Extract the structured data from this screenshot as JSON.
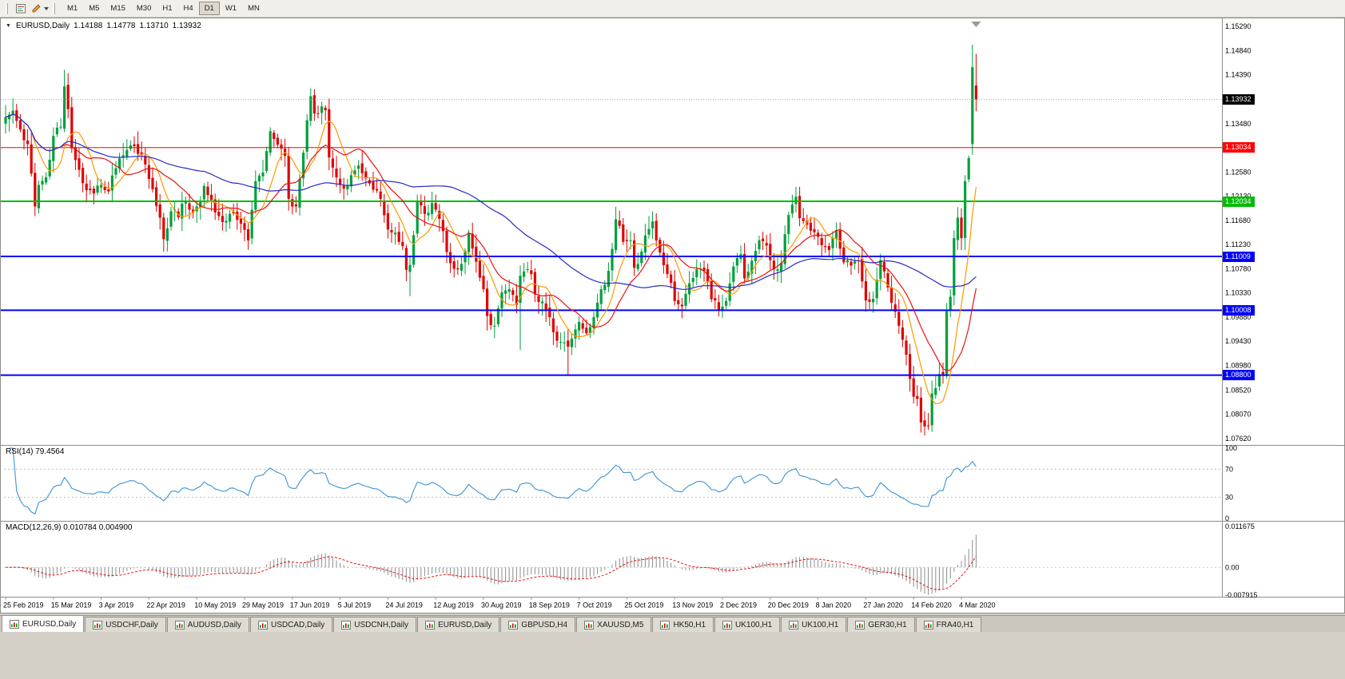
{
  "toolbar": {
    "timeframes": [
      {
        "label": "M1",
        "active": false
      },
      {
        "label": "M5",
        "active": false
      },
      {
        "label": "M15",
        "active": false
      },
      {
        "label": "M30",
        "active": false
      },
      {
        "label": "H1",
        "active": false
      },
      {
        "label": "H4",
        "active": false
      },
      {
        "label": "D1",
        "active": true
      },
      {
        "label": "W1",
        "active": false
      },
      {
        "label": "MN",
        "active": false
      }
    ]
  },
  "panels": {
    "price_title": {
      "dropdown": "▼",
      "symbol": "EURUSD,Daily",
      "open": "1.14188",
      "high": "1.14778",
      "low": "1.13710",
      "close": "1.13932"
    },
    "rsi_title": "RSI(14) 79.4564",
    "macd_title": "MACD(12,26,9) 0.010784 0.004900"
  },
  "price_axis": {
    "ticks": [
      "1.15290",
      "1.14840",
      "1.14390",
      "1.13480",
      "1.12580",
      "1.12130",
      "1.11680",
      "1.11230",
      "1.10780",
      "1.10330",
      "1.09880",
      "1.09430",
      "1.08980",
      "1.08520",
      "1.08070",
      "1.07620"
    ]
  },
  "rsi_axis": {
    "labels": [
      "100",
      "70",
      "30",
      "0"
    ]
  },
  "macd_axis": {
    "labels": [
      "0.011675",
      "0.00",
      "-0.007915"
    ]
  },
  "x_axis": {
    "bars_per_label": 13,
    "labels": [
      "25 Feb 2019",
      "15 Mar 2019",
      "3 Apr 2019",
      "22 Apr 2019",
      "10 May 2019",
      "29 May 2019",
      "17 Jun 2019",
      "5 Jul 2019",
      "24 Jul 2019",
      "12 Aug 2019",
      "30 Aug 2019",
      "18 Sep 2019",
      "7 Oct 2019",
      "25 Oct 2019",
      "13 Nov 2019",
      "2 Dec 2019",
      "20 Dec 2019",
      "8 Jan 2020",
      "27 Jan 2020",
      "14 Feb 2020",
      "4 Mar 2020"
    ]
  },
  "chart_data": {
    "type": "candlestick",
    "symbol": "EURUSD",
    "timeframe": "Daily",
    "bar_count": 265,
    "visible_range": {
      "min": 1.0762,
      "max": 1.1529
    },
    "up_color": "#009f3c",
    "down_color": "#e00000",
    "bid": {
      "label": "1.13932",
      "value": 1.13932,
      "box_color": "#000000"
    },
    "last_bar": {
      "open": 1.14188,
      "high": 1.14778,
      "low": 1.1371,
      "close": 1.13932
    },
    "horizontal_lines": [
      {
        "label": "1.13034",
        "value": 1.13034,
        "color": "#ff0000",
        "width": 1
      },
      {
        "label": "1.12034",
        "value": 1.12034,
        "color": "#00bb00",
        "width": 2
      },
      {
        "label": "1.11009",
        "value": 1.11009,
        "color": "#0000ff",
        "width": 2
      },
      {
        "label": "1.10008",
        "value": 1.10008,
        "color": "#0000ff",
        "width": 2
      },
      {
        "label": "1.08800",
        "value": 1.088,
        "color": "#0000ff",
        "width": 2
      }
    ],
    "moving_averages": [
      {
        "period": 8,
        "color": "#ff9a00"
      },
      {
        "period": 16,
        "color": "#e81212"
      },
      {
        "period": 55,
        "color": "#2929c8"
      }
    ],
    "rsi": {
      "period": 14,
      "last_value": 79.4564,
      "color": "#3f92d2",
      "levels": [
        70,
        30
      ],
      "range": [
        0,
        100
      ]
    },
    "macd": {
      "fast": 12,
      "slow": 26,
      "signal_period": 9,
      "macd_last": 0.010784,
      "signal_last": 0.0049,
      "histogram_color": "#8c8c8c",
      "signal_color": "#e81212",
      "range": {
        "max": 0.011675,
        "min": -0.007915
      }
    },
    "close_anchors": [
      [
        0,
        1.136
      ],
      [
        2,
        1.1372
      ],
      [
        4,
        1.1337
      ],
      [
        6,
        1.131
      ],
      [
        8,
        1.1194
      ],
      [
        9,
        1.1234
      ],
      [
        11,
        1.1248
      ],
      [
        13,
        1.1325
      ],
      [
        15,
        1.1342
      ],
      [
        16,
        1.1417
      ],
      [
        17,
        1.1375
      ],
      [
        18,
        1.1302
      ],
      [
        20,
        1.1262
      ],
      [
        22,
        1.1224
      ],
      [
        24,
        1.1218
      ],
      [
        26,
        1.1234
      ],
      [
        28,
        1.1222
      ],
      [
        30,
        1.1265
      ],
      [
        33,
        1.1299
      ],
      [
        35,
        1.1306
      ],
      [
        37,
        1.129
      ],
      [
        39,
        1.1245
      ],
      [
        41,
        1.1195
      ],
      [
        43,
        1.1133
      ],
      [
        45,
        1.1185
      ],
      [
        47,
        1.1174
      ],
      [
        48,
        1.1199
      ],
      [
        50,
        1.1188
      ],
      [
        52,
        1.1194
      ],
      [
        54,
        1.1232
      ],
      [
        56,
        1.1206
      ],
      [
        58,
        1.1176
      ],
      [
        60,
        1.1167
      ],
      [
        62,
        1.1181
      ],
      [
        64,
        1.1162
      ],
      [
        66,
        1.1131
      ],
      [
        68,
        1.1241
      ],
      [
        70,
        1.1257
      ],
      [
        72,
        1.1334
      ],
      [
        74,
        1.1309
      ],
      [
        76,
        1.1288
      ],
      [
        77,
        1.1208
      ],
      [
        79,
        1.1194
      ],
      [
        81,
        1.1294
      ],
      [
        83,
        1.1399
      ],
      [
        84,
        1.1367
      ],
      [
        86,
        1.138
      ],
      [
        87,
        1.1373
      ],
      [
        88,
        1.1285
      ],
      [
        90,
        1.1248
      ],
      [
        92,
        1.1227
      ],
      [
        94,
        1.1252
      ],
      [
        96,
        1.127
      ],
      [
        98,
        1.1246
      ],
      [
        100,
        1.1225
      ],
      [
        102,
        1.1208
      ],
      [
        104,
        1.1151
      ],
      [
        106,
        1.1145
      ],
      [
        108,
        1.112
      ],
      [
        109,
        1.1076
      ],
      [
        110,
        1.1085
      ],
      [
        112,
        1.1203
      ],
      [
        114,
        1.118
      ],
      [
        116,
        1.12
      ],
      [
        118,
        1.1171
      ],
      [
        120,
        1.1109
      ],
      [
        122,
        1.1078
      ],
      [
        124,
        1.1087
      ],
      [
        126,
        1.1145
      ],
      [
        128,
        1.1091
      ],
      [
        130,
        1.104
      ],
      [
        131,
        1.099
      ],
      [
        133,
        1.0972
      ],
      [
        135,
        1.1034
      ],
      [
        137,
        1.104
      ],
      [
        139,
        1.1011
      ],
      [
        140,
        1.1065
      ],
      [
        141,
        1.1073
      ],
      [
        143,
        1.1068
      ],
      [
        144,
        1.103
      ],
      [
        146,
        1.1017
      ],
      [
        148,
        1.0988
      ],
      [
        150,
        1.0944
      ],
      [
        152,
        1.0941
      ],
      [
        153,
        1.0933
      ],
      [
        155,
        1.0965
      ],
      [
        156,
        1.0979
      ],
      [
        158,
        1.0958
      ],
      [
        160,
        1.0988
      ],
      [
        162,
        1.104
      ],
      [
        164,
        1.1074
      ],
      [
        166,
        1.117
      ],
      [
        168,
        1.1128
      ],
      [
        170,
        1.1131
      ],
      [
        171,
        1.108
      ],
      [
        173,
        1.111
      ],
      [
        175,
        1.1152
      ],
      [
        176,
        1.1166
      ],
      [
        178,
        1.1108
      ],
      [
        180,
        1.1068
      ],
      [
        182,
        1.1018
      ],
      [
        184,
        1.1008
      ],
      [
        186,
        1.1051
      ],
      [
        188,
        1.1077
      ],
      [
        190,
        1.1074
      ],
      [
        192,
        1.1021
      ],
      [
        194,
        1.1001
      ],
      [
        196,
        1.1018
      ],
      [
        198,
        1.1082
      ],
      [
        200,
        1.1105
      ],
      [
        201,
        1.106
      ],
      [
        203,
        1.1093
      ],
      [
        205,
        1.1131
      ],
      [
        207,
        1.1121
      ],
      [
        209,
        1.1077
      ],
      [
        211,
        1.1089
      ],
      [
        213,
        1.1178
      ],
      [
        215,
        1.1212
      ],
      [
        216,
        1.1172
      ],
      [
        218,
        1.116
      ],
      [
        220,
        1.1146
      ],
      [
        222,
        1.1122
      ],
      [
        224,
        1.1113
      ],
      [
        226,
        1.115
      ],
      [
        228,
        1.109
      ],
      [
        230,
        1.1084
      ],
      [
        232,
        1.1093
      ],
      [
        234,
        1.1019
      ],
      [
        236,
        1.1022
      ],
      [
        238,
        1.1094
      ],
      [
        240,
        1.1043
      ],
      [
        242,
        1.0998
      ],
      [
        244,
        1.0946
      ],
      [
        246,
        1.0873
      ],
      [
        247,
        1.084
      ],
      [
        248,
        1.0836
      ],
      [
        249,
        1.0792
      ],
      [
        251,
        1.0785
      ],
      [
        252,
        1.0846
      ],
      [
        254,
        1.0882
      ],
      [
        255,
        1.088
      ],
      [
        256,
        1.0999
      ],
      [
        257,
        1.1026
      ],
      [
        258,
        1.1135
      ],
      [
        259,
        1.1173
      ],
      [
        260,
        1.1135
      ],
      [
        261,
        1.1241
      ],
      [
        262,
        1.1284
      ],
      [
        263,
        1.1453
      ],
      [
        264,
        1.13932
      ]
    ],
    "ohlc_overrides": [
      {
        "i": 8,
        "l": 1.1176
      },
      {
        "i": 16,
        "h": 1.1448
      },
      {
        "i": 43,
        "l": 1.111
      },
      {
        "i": 84,
        "h": 1.1412
      },
      {
        "i": 110,
        "l": 1.1027
      },
      {
        "i": 131,
        "l": 1.0963
      },
      {
        "i": 140,
        "l": 1.0927
      },
      {
        "i": 153,
        "l": 1.0879
      },
      {
        "i": 251,
        "l": 1.0778
      },
      {
        "i": 263,
        "o": 1.131,
        "h": 1.1495,
        "l": 1.129,
        "c": 1.1453
      },
      {
        "i": 264,
        "o": 1.14188,
        "h": 1.14778,
        "l": 1.1371,
        "c": 1.13932
      }
    ]
  },
  "tabs": [
    {
      "label": "EURUSD,Daily",
      "active": true
    },
    {
      "label": "USDCHF,Daily",
      "active": false
    },
    {
      "label": "AUDUSD,Daily",
      "active": false
    },
    {
      "label": "USDCAD,Daily",
      "active": false
    },
    {
      "label": "USDCNH,Daily",
      "active": false
    },
    {
      "label": "EURUSD,Daily",
      "active": false
    },
    {
      "label": "GBPUSD,H4",
      "active": false
    },
    {
      "label": "XAUUSD,M5",
      "active": false
    },
    {
      "label": "HK50,H1",
      "active": false
    },
    {
      "label": "UK100,H1",
      "active": false
    },
    {
      "label": "UK100,H1",
      "active": false
    },
    {
      "label": "GER30,H1",
      "active": false
    },
    {
      "label": "FRA40,H1",
      "active": false
    }
  ]
}
